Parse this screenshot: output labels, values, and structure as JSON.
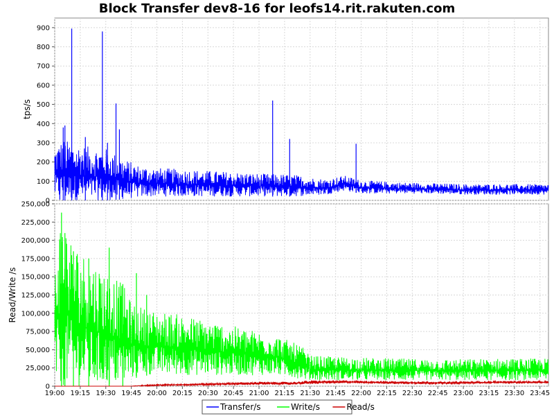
{
  "chart_data": {
    "type": "line",
    "title": "Block Transfer dev8-16 for leofs14.rit.rakuten.com",
    "x_ticks": [
      "19:00",
      "19:15",
      "19:30",
      "19:45",
      "20:00",
      "20:15",
      "20:30",
      "20:45",
      "21:00",
      "21:15",
      "21:30",
      "21:45",
      "22:00",
      "22:15",
      "22:30",
      "22:45",
      "23:00",
      "23:15",
      "23:30",
      "23:45"
    ],
    "x_range_minutes": [
      0,
      290
    ],
    "legend_placement": "bottom-center",
    "grid": true,
    "panels": [
      {
        "ylabel": "tps/s",
        "ylim": [
          0,
          950
        ],
        "y_ticks": [
          0,
          100,
          200,
          300,
          400,
          500,
          600,
          700,
          800,
          900
        ],
        "y_tick_labels": [
          "0",
          "100",
          "200",
          "300",
          "400",
          "500",
          "600",
          "700",
          "800",
          "900"
        ],
        "series": [
          {
            "name": "Transfer/s",
            "color": "#0000ff",
            "envelope": [
              {
                "x": 0,
                "lo": 10,
                "hi": 280
              },
              {
                "x": 5,
                "lo": 0,
                "hi": 320
              },
              {
                "x": 10,
                "lo": 0,
                "hi": 300
              },
              {
                "x": 20,
                "lo": 0,
                "hi": 280
              },
              {
                "x": 30,
                "lo": 0,
                "hi": 270
              },
              {
                "x": 40,
                "lo": 5,
                "hi": 220
              },
              {
                "x": 50,
                "lo": 15,
                "hi": 180
              },
              {
                "x": 60,
                "lo": 20,
                "hi": 170
              },
              {
                "x": 80,
                "lo": 20,
                "hi": 160
              },
              {
                "x": 100,
                "lo": 20,
                "hi": 150
              },
              {
                "x": 120,
                "lo": 20,
                "hi": 140
              },
              {
                "x": 140,
                "lo": 20,
                "hi": 135
              },
              {
                "x": 150,
                "lo": 25,
                "hi": 120
              },
              {
                "x": 160,
                "lo": 30,
                "hi": 110
              },
              {
                "x": 170,
                "lo": 50,
                "hi": 130
              },
              {
                "x": 180,
                "lo": 35,
                "hi": 105
              },
              {
                "x": 200,
                "lo": 35,
                "hi": 95
              },
              {
                "x": 220,
                "lo": 35,
                "hi": 90
              },
              {
                "x": 240,
                "lo": 30,
                "hi": 85
              },
              {
                "x": 260,
                "lo": 30,
                "hi": 85
              },
              {
                "x": 290,
                "lo": 30,
                "hi": 85
              }
            ],
            "spikes": [
              {
                "x": 3,
                "y": 250
              },
              {
                "x": 5,
                "y": 380
              },
              {
                "x": 6,
                "y": 390
              },
              {
                "x": 10,
                "y": 895
              },
              {
                "x": 18,
                "y": 330
              },
              {
                "x": 28,
                "y": 880
              },
              {
                "x": 31,
                "y": 300
              },
              {
                "x": 36,
                "y": 505
              },
              {
                "x": 38,
                "y": 370
              },
              {
                "x": 128,
                "y": 520
              },
              {
                "x": 138,
                "y": 320
              },
              {
                "x": 177,
                "y": 295
              }
            ]
          }
        ]
      },
      {
        "ylabel": "Read/Write /s",
        "ylim": [
          0,
          250000
        ],
        "y_ticks": [
          0,
          25000,
          50000,
          75000,
          100000,
          125000,
          150000,
          175000,
          200000,
          225000,
          250000
        ],
        "y_tick_labels": [
          "0",
          "25,000",
          "50,000",
          "75,000",
          "100,000",
          "125,000",
          "150,000",
          "175,000",
          "200,000",
          "225,000",
          "250,000"
        ],
        "series": [
          {
            "name": "Write/s",
            "color": "#00ff00",
            "envelope": [
              {
                "x": 0,
                "lo": 0,
                "hi": 170000
              },
              {
                "x": 3,
                "lo": 0,
                "hi": 225000
              },
              {
                "x": 5,
                "lo": 0,
                "hi": 238000
              },
              {
                "x": 10,
                "lo": 0,
                "hi": 200000
              },
              {
                "x": 20,
                "lo": 0,
                "hi": 175000
              },
              {
                "x": 30,
                "lo": 0,
                "hi": 160000
              },
              {
                "x": 40,
                "lo": 0,
                "hi": 140000
              },
              {
                "x": 45,
                "lo": 10000,
                "hi": 115000
              },
              {
                "x": 55,
                "lo": 15000,
                "hi": 105000
              },
              {
                "x": 70,
                "lo": 15000,
                "hi": 100000
              },
              {
                "x": 90,
                "lo": 15000,
                "hi": 90000
              },
              {
                "x": 110,
                "lo": 15000,
                "hi": 80000
              },
              {
                "x": 130,
                "lo": 15000,
                "hi": 70000
              },
              {
                "x": 145,
                "lo": 10000,
                "hi": 55000
              },
              {
                "x": 150,
                "lo": 8000,
                "hi": 42000
              },
              {
                "x": 170,
                "lo": 8000,
                "hi": 40000
              },
              {
                "x": 200,
                "lo": 8000,
                "hi": 38000
              },
              {
                "x": 230,
                "lo": 8000,
                "hi": 37000
              },
              {
                "x": 260,
                "lo": 8000,
                "hi": 38000
              },
              {
                "x": 290,
                "lo": 8000,
                "hi": 38000
              }
            ],
            "spikes": [
              {
                "x": 4,
                "y": 238000
              },
              {
                "x": 6,
                "y": 210000
              },
              {
                "x": 11,
                "y": 185000
              },
              {
                "x": 20,
                "y": 175000
              },
              {
                "x": 32,
                "y": 190000
              },
              {
                "x": 40,
                "y": 140000
              },
              {
                "x": 48,
                "y": 155000
              },
              {
                "x": 54,
                "y": 125000
              }
            ]
          },
          {
            "name": "Read/s",
            "color": "#cc0000",
            "envelope": [
              {
                "x": 0,
                "lo": 0,
                "hi": 0
              },
              {
                "x": 45,
                "lo": 0,
                "hi": 0
              },
              {
                "x": 50,
                "lo": 0,
                "hi": 1500
              },
              {
                "x": 60,
                "lo": 500,
                "hi": 2500
              },
              {
                "x": 80,
                "lo": 1000,
                "hi": 3500
              },
              {
                "x": 100,
                "lo": 1500,
                "hi": 5000
              },
              {
                "x": 120,
                "lo": 2000,
                "hi": 6000
              },
              {
                "x": 140,
                "lo": 2000,
                "hi": 6000
              },
              {
                "x": 150,
                "lo": 3000,
                "hi": 8000
              },
              {
                "x": 170,
                "lo": 4000,
                "hi": 8000
              },
              {
                "x": 200,
                "lo": 3000,
                "hi": 7000
              },
              {
                "x": 230,
                "lo": 3000,
                "hi": 6000
              },
              {
                "x": 260,
                "lo": 4000,
                "hi": 7000
              },
              {
                "x": 290,
                "lo": 4000,
                "hi": 7000
              }
            ],
            "spikes": []
          }
        ]
      }
    ]
  }
}
